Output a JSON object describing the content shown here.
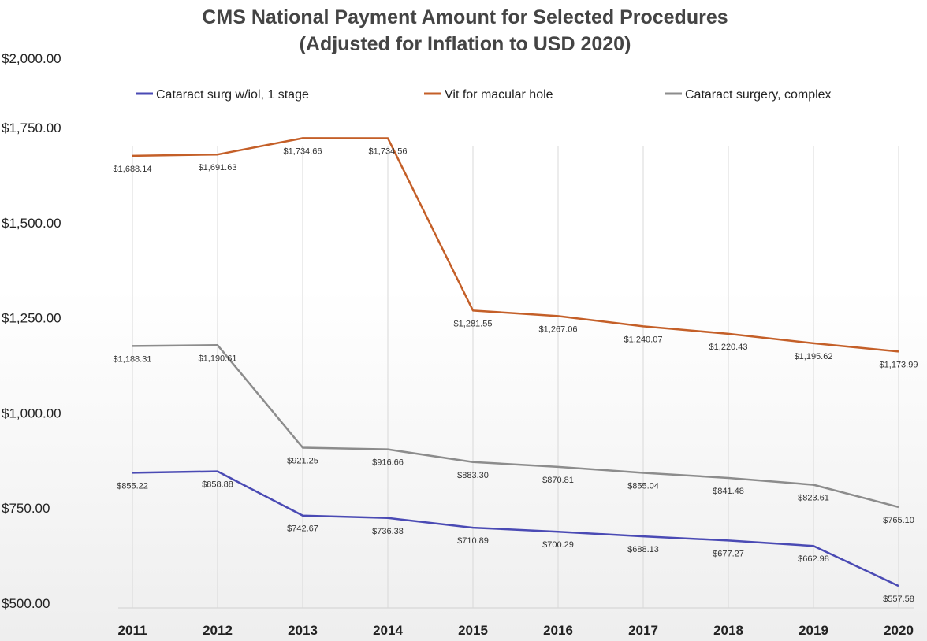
{
  "chart_data": {
    "type": "line",
    "title": "CMS National Payment Amount for Selected Procedures",
    "subtitle": "(Adjusted for Inflation to USD 2020)",
    "xlabel": "",
    "ylabel": "",
    "categories": [
      "2011",
      "2012",
      "2013",
      "2014",
      "2015",
      "2016",
      "2017",
      "2018",
      "2019",
      "2020"
    ],
    "ylim": [
      500,
      2000
    ],
    "yticks": [
      2000,
      1750,
      1500,
      1250,
      1000,
      750,
      500
    ],
    "ytick_labels": [
      "$2,000.00",
      "$1,750.00",
      "$1,500.00",
      "$1,250.00",
      "$1,000.00",
      "$750.00",
      "$500.00"
    ],
    "grid": "vertical",
    "legend_position": "top",
    "series": [
      {
        "name": "Cataract surg w/iol, 1 stage",
        "color": "#4a4ab4",
        "values": [
          855.22,
          858.88,
          742.67,
          736.38,
          710.89,
          700.29,
          688.13,
          677.27,
          662.98,
          557.58
        ],
        "labels": [
          "$855.22",
          "$858.88",
          "$742.67",
          "$736.38",
          "$710.89",
          "$700.29",
          "$688.13",
          "$677.27",
          "$662.98",
          "$557.58"
        ]
      },
      {
        "name": "Vit for macular hole",
        "color": "#c45f28",
        "values": [
          1688.14,
          1691.63,
          1734.66,
          1734.56,
          1281.55,
          1267.06,
          1240.07,
          1220.43,
          1195.62,
          1173.99
        ],
        "labels": [
          "$1,688.14",
          "$1,691.63",
          "$1,734.66",
          "$1,734.56",
          "$1,281.55",
          "$1,267.06",
          "$1,240.07",
          "$1,220.43",
          "$1,195.62",
          "$1,173.99"
        ]
      },
      {
        "name": "Cataract surgery, complex",
        "color": "#8c8c8c",
        "values": [
          1188.31,
          1190.61,
          921.25,
          916.66,
          883.3,
          870.81,
          855.04,
          841.48,
          823.61,
          765.1
        ],
        "labels": [
          "$1,188.31",
          "$1,190.61",
          "$921.25",
          "$916.66",
          "$883.30",
          "$870.81",
          "$855.04",
          "$841.48",
          "$823.61",
          "$765.10"
        ]
      }
    ]
  }
}
